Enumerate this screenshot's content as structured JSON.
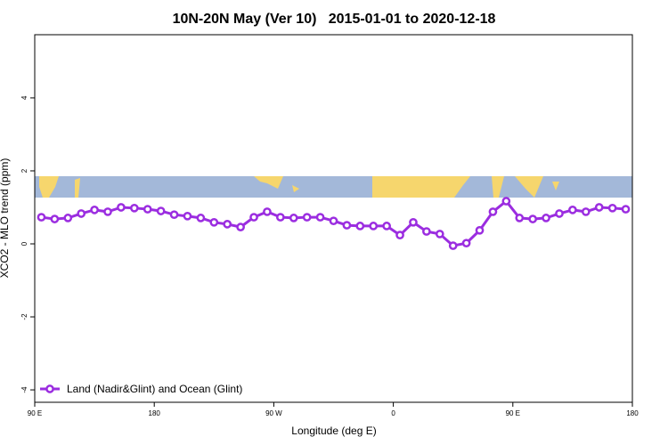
{
  "chart_data": {
    "type": "line",
    "title": "10N-20N May (Ver 10)   2015-01-01 to 2020-12-18",
    "x_label": "Longitude (deg E)",
    "y_label": "XCO2 - MLO trend (ppm)",
    "x": [
      95,
      105,
      115,
      125,
      135,
      145,
      155,
      165,
      175,
      185,
      195,
      205,
      215,
      225,
      235,
      245,
      255,
      265,
      275,
      285,
      295,
      305,
      315,
      325,
      335,
      345,
      355,
      365,
      375,
      385,
      395,
      405,
      415,
      425,
      435,
      445,
      455,
      465,
      475,
      485,
      495,
      505,
      515,
      525,
      535
    ],
    "series": [
      {
        "name": "Land (Nadir&Glint) and Ocean (Glint)",
        "color": "#9b2de0",
        "values": [
          0.73,
          0.68,
          0.71,
          0.83,
          0.93,
          0.88,
          1.0,
          0.98,
          0.95,
          0.9,
          0.8,
          0.76,
          0.71,
          0.59,
          0.54,
          0.46,
          0.73,
          0.88,
          0.73,
          0.71,
          0.73,
          0.73,
          0.63,
          0.51,
          0.49,
          0.49,
          0.49,
          0.24,
          0.59,
          0.34,
          0.27,
          -0.05,
          0.02,
          0.37,
          0.88,
          1.17,
          0.71,
          0.68,
          0.71,
          0.83,
          0.93,
          0.88,
          1.0,
          0.98,
          0.95
        ]
      }
    ],
    "xlim": [
      90,
      540
    ],
    "xticks": [
      {
        "value": 90,
        "label": "90 E"
      },
      180,
      {
        "value": 270,
        "label": "90 W"
      },
      {
        "value": 360,
        "label": "0"
      },
      {
        "value": 450,
        "label": "90 E"
      },
      {
        "value": 540,
        "label": "180"
      }
    ],
    "ylim": [
      -4.34,
      5.73
    ],
    "yticks": [
      4,
      2,
      0,
      -2,
      -4
    ],
    "legend": "bottom-left"
  }
}
